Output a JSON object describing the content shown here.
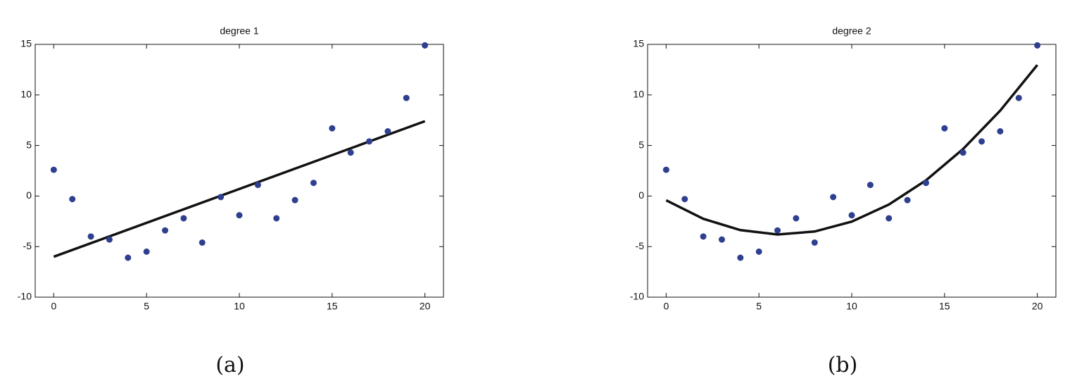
{
  "chart_data": [
    {
      "type": "scatter",
      "title": "degree 1",
      "caption": "(a)",
      "xlim": [
        -1,
        21
      ],
      "ylim": [
        -10,
        15
      ],
      "xticks": [
        0,
        5,
        10,
        15,
        20
      ],
      "yticks": [
        -10,
        -5,
        0,
        5,
        10,
        15
      ],
      "points": {
        "color": "#2e3f8f",
        "x": [
          0,
          1,
          2,
          3,
          4,
          5,
          6,
          7,
          8,
          9,
          10,
          11,
          12,
          13,
          14,
          15,
          16,
          17,
          18,
          19,
          20
        ],
        "values": [
          2.6,
          -0.3,
          -4.0,
          -4.3,
          -6.1,
          -5.5,
          -3.4,
          -2.2,
          -4.6,
          -0.1,
          -1.9,
          1.1,
          -2.2,
          -0.4,
          1.3,
          6.7,
          4.3,
          5.4,
          6.4,
          9.7,
          14.9
        ]
      },
      "fit": {
        "color": "#111111",
        "x": [
          0,
          20
        ],
        "values": [
          -6.0,
          7.4
        ]
      }
    },
    {
      "type": "scatter",
      "title": "degree 2",
      "caption": "(b)",
      "xlim": [
        -1,
        21
      ],
      "ylim": [
        -10,
        15
      ],
      "xticks": [
        0,
        5,
        10,
        15,
        20
      ],
      "yticks": [
        -10,
        -5,
        0,
        5,
        10,
        15
      ],
      "points": {
        "color": "#2e3f8f",
        "x": [
          0,
          1,
          2,
          3,
          4,
          5,
          6,
          7,
          8,
          9,
          10,
          11,
          12,
          13,
          14,
          15,
          16,
          17,
          18,
          19,
          20
        ],
        "values": [
          2.6,
          -0.3,
          -4.0,
          -4.3,
          -6.1,
          -5.5,
          -3.4,
          -2.2,
          -4.6,
          -0.1,
          -1.9,
          1.1,
          -2.2,
          -0.4,
          1.3,
          6.7,
          4.3,
          5.4,
          6.4,
          9.7,
          14.9
        ]
      },
      "fit": {
        "color": "#111111",
        "x": [
          0,
          2,
          4,
          6,
          8,
          10,
          12,
          14,
          16,
          18,
          20
        ],
        "values": [
          -0.42,
          -2.25,
          -3.37,
          -3.8,
          -3.51,
          -2.53,
          -0.84,
          1.55,
          4.65,
          8.45,
          12.96
        ]
      }
    }
  ]
}
